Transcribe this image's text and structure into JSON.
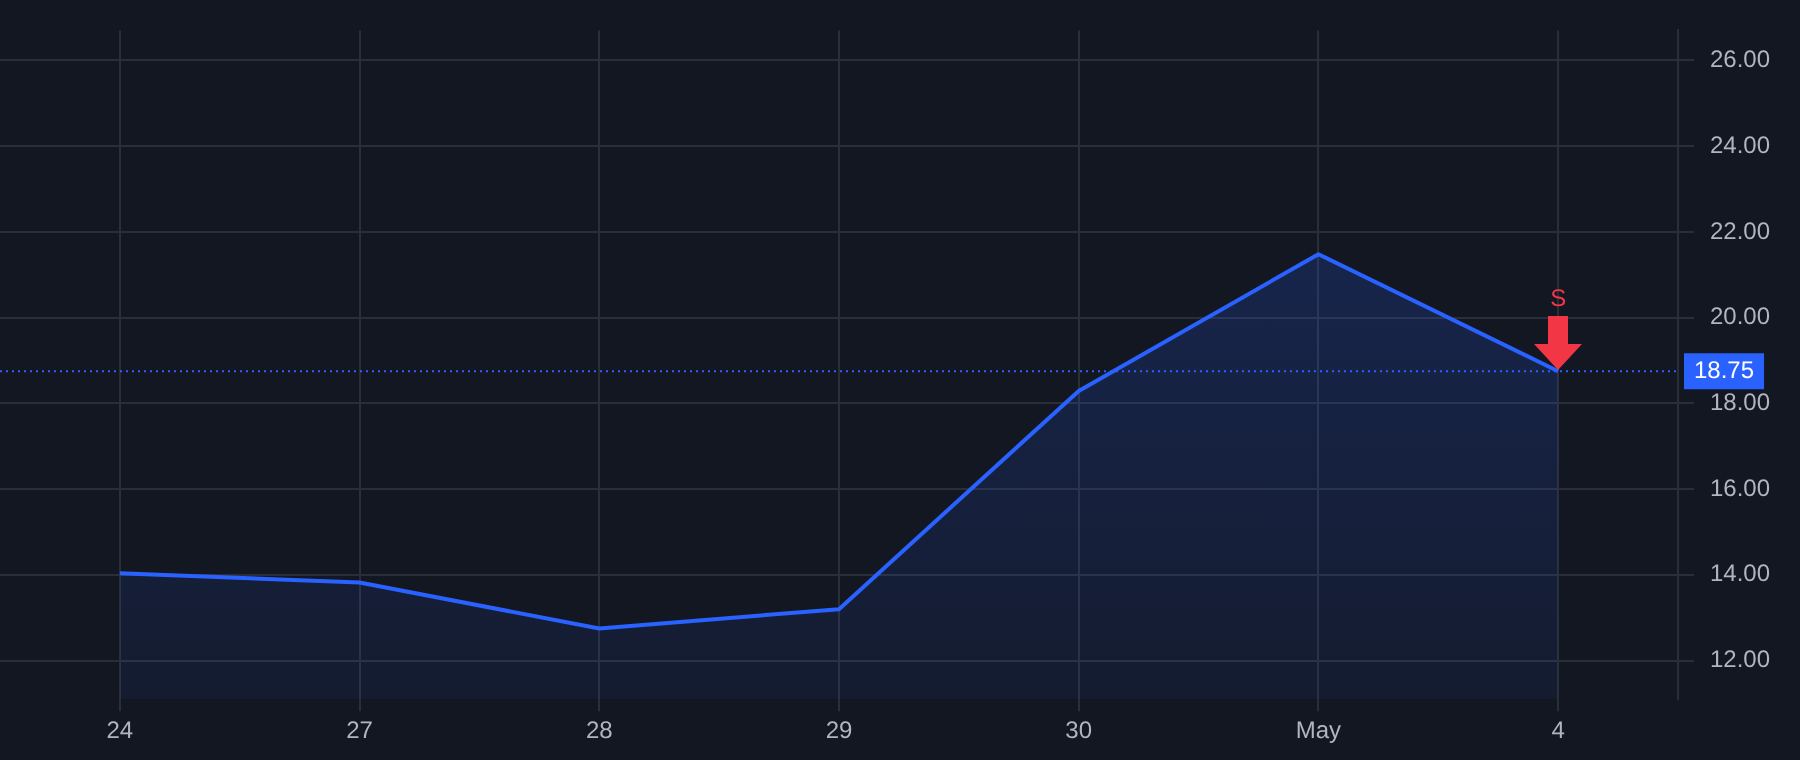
{
  "chart_data": {
    "type": "area",
    "categories": [
      "24",
      "27",
      "28",
      "29",
      "30",
      "May",
      "4"
    ],
    "series": [
      {
        "color": "#2962ff",
        "values": [
          14.04,
          13.82,
          12.75,
          13.2,
          18.29,
          21.48,
          18.75
        ]
      }
    ],
    "ylim": [
      11.1,
      26.7
    ],
    "yticks": [
      {
        "value": 12,
        "label": "12.00"
      },
      {
        "value": 14,
        "label": "14.00"
      },
      {
        "value": 16,
        "label": "16.00"
      },
      {
        "value": 18,
        "label": "18.00"
      },
      {
        "value": 20,
        "label": "20.00"
      },
      {
        "value": 22,
        "label": "22.00"
      },
      {
        "value": 24,
        "label": "24.00"
      },
      {
        "value": 26,
        "label": "26.00"
      }
    ],
    "ref_lines": [
      {
        "axis": "y",
        "value": 18.75,
        "label": "18.75",
        "color": "#2962ff",
        "line_style": "dotted"
      }
    ],
    "annotations": [
      {
        "text": "S",
        "x": "4",
        "y": 18.75
      }
    ],
    "grid": true,
    "legend": false,
    "marker": "none",
    "line_style": "solid"
  }
}
